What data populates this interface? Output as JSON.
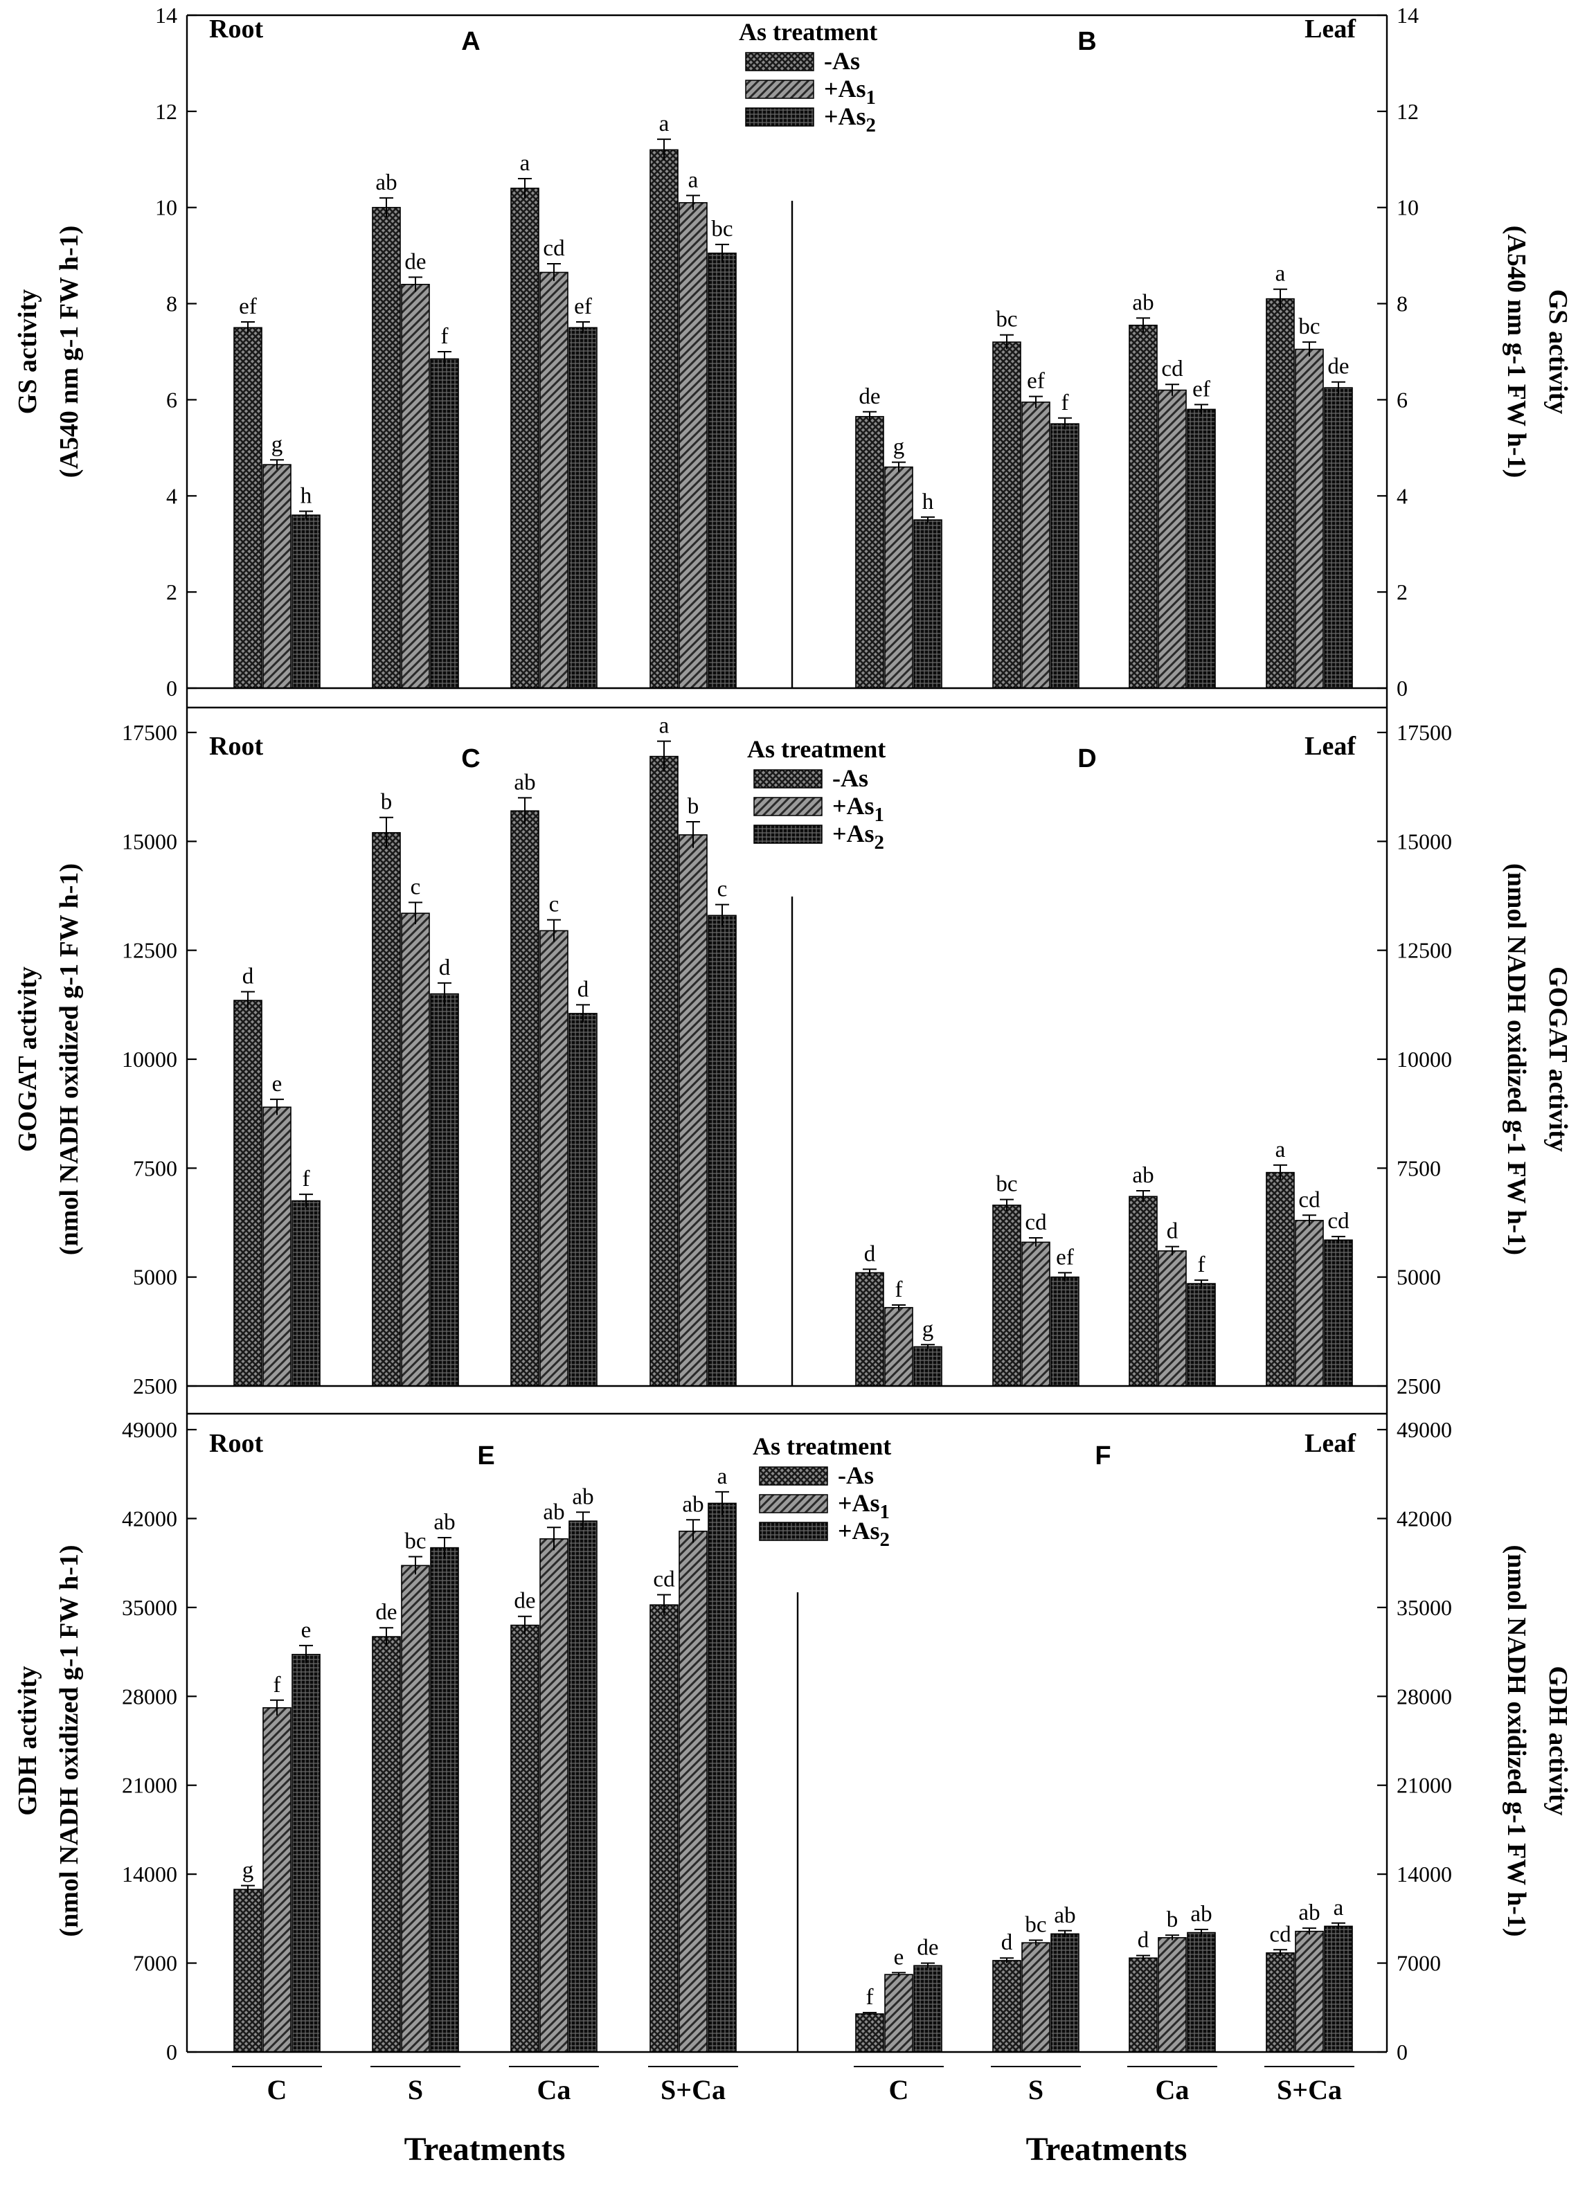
{
  "figure": {
    "x_title": "Treatments",
    "legend_title": "As treatment",
    "series_names": [
      "-As",
      "+As1",
      "+As2"
    ],
    "patterns": [
      "crosshatch",
      "diagonal",
      "grid"
    ],
    "colors": {
      "bar_dark": "#2a2a2a",
      "bar_grey": "#8c8c8c",
      "bar_black": "#101010",
      "axis": "#000000"
    }
  },
  "chart_data": [
    {
      "type": "bar",
      "panel": "A",
      "tissue": "Root",
      "side": "left",
      "ylabel": "GS activity",
      "yunit": "(A540 nm g-1 FW h-1)",
      "ylim": [
        0,
        14
      ],
      "yticks": [
        0,
        2,
        4,
        6,
        8,
        10,
        12,
        14
      ],
      "categories": [
        "C",
        "S",
        "Ca",
        "S+Ca"
      ],
      "series": [
        {
          "name": "-As",
          "values": [
            7.5,
            10.0,
            10.4,
            11.2
          ],
          "errors": [
            0.12,
            0.2,
            0.2,
            0.22
          ],
          "letters": [
            "ef",
            "ab",
            "a",
            "a"
          ]
        },
        {
          "name": "+As1",
          "values": [
            4.65,
            8.4,
            8.65,
            10.1
          ],
          "errors": [
            0.1,
            0.15,
            0.18,
            0.15
          ],
          "letters": [
            "g",
            "de",
            "cd",
            "a"
          ]
        },
        {
          "name": "+As2",
          "values": [
            3.6,
            6.85,
            7.5,
            9.05
          ],
          "errors": [
            0.08,
            0.15,
            0.12,
            0.18
          ],
          "letters": [
            "h",
            "f",
            "ef",
            "bc"
          ]
        }
      ],
      "legend": true
    },
    {
      "type": "bar",
      "panel": "B",
      "tissue": "Leaf",
      "side": "right",
      "ylabel": "GS activity",
      "yunit": "(A540 nm g-1 FW h-1)",
      "ylim": [
        0,
        14
      ],
      "yticks": [
        0,
        2,
        4,
        6,
        8,
        10,
        12,
        14
      ],
      "categories": [
        "C",
        "S",
        "Ca",
        "S+Ca"
      ],
      "series": [
        {
          "name": "-As",
          "values": [
            5.65,
            7.2,
            7.55,
            8.1
          ],
          "errors": [
            0.1,
            0.15,
            0.15,
            0.2
          ],
          "letters": [
            "de",
            "bc",
            "ab",
            "a"
          ]
        },
        {
          "name": "+As1",
          "values": [
            4.6,
            5.95,
            6.2,
            7.05
          ],
          "errors": [
            0.1,
            0.12,
            0.12,
            0.15
          ],
          "letters": [
            "g",
            "ef",
            "cd",
            "bc"
          ]
        },
        {
          "name": "+As2",
          "values": [
            3.5,
            5.5,
            5.8,
            6.25
          ],
          "errors": [
            0.06,
            0.12,
            0.1,
            0.12
          ],
          "letters": [
            "h",
            "f",
            "ef",
            "de"
          ]
        }
      ],
      "legend": false
    },
    {
      "type": "bar",
      "panel": "C",
      "tissue": "Root",
      "side": "left",
      "ylabel": "GOGAT activity",
      "yunit": "(nmol NADH oxidized g-1 FW h-1)",
      "ylim": [
        2500,
        17500
      ],
      "yticks": [
        2500,
        5000,
        7500,
        10000,
        12500,
        15000,
        17500
      ],
      "categories": [
        "C",
        "S",
        "Ca",
        "S+Ca"
      ],
      "series": [
        {
          "name": "-As",
          "values": [
            11350,
            15200,
            15700,
            16950
          ],
          "errors": [
            200,
            350,
            300,
            350
          ],
          "letters": [
            "d",
            "b",
            "ab",
            "a"
          ]
        },
        {
          "name": "+As1",
          "values": [
            8900,
            13350,
            12950,
            15150
          ],
          "errors": [
            180,
            250,
            250,
            300
          ],
          "letters": [
            "e",
            "c",
            "c",
            "b"
          ]
        },
        {
          "name": "+As2",
          "values": [
            6750,
            11500,
            11050,
            13300
          ],
          "errors": [
            150,
            250,
            200,
            250
          ],
          "letters": [
            "f",
            "d",
            "d",
            "c"
          ]
        }
      ],
      "legend": true
    },
    {
      "type": "bar",
      "panel": "D",
      "tissue": "Leaf",
      "side": "right",
      "ylabel": "GOGAT activity",
      "yunit": "(nmol NADH oxidized g-1 FW h-1)",
      "ylim": [
        2500,
        17500
      ],
      "yticks": [
        2500,
        5000,
        7500,
        10000,
        12500,
        15000,
        17500
      ],
      "categories": [
        "C",
        "S",
        "Ca",
        "S+Ca"
      ],
      "series": [
        {
          "name": "-As",
          "values": [
            5100,
            6650,
            6850,
            7400
          ],
          "errors": [
            80,
            130,
            130,
            170
          ],
          "letters": [
            "d",
            "bc",
            "ab",
            "a"
          ]
        },
        {
          "name": "+As1",
          "values": [
            4300,
            5800,
            5600,
            6300
          ],
          "errors": [
            60,
            100,
            100,
            120
          ],
          "letters": [
            "f",
            "cd",
            "d",
            "cd"
          ]
        },
        {
          "name": "+As2",
          "values": [
            3400,
            5000,
            4850,
            5850
          ],
          "errors": [
            50,
            100,
            80,
            80
          ],
          "letters": [
            "g",
            "ef",
            "f",
            "cd"
          ]
        }
      ],
      "legend": false
    },
    {
      "type": "bar",
      "panel": "E",
      "tissue": "Root",
      "side": "left",
      "ylabel": "GDH activity",
      "yunit": "(nmol NADH oxidized g-1 FW h-1)",
      "ylim": [
        0,
        49000
      ],
      "yticks": [
        0,
        7000,
        14000,
        21000,
        28000,
        35000,
        42000,
        49000
      ],
      "categories": [
        "C",
        "S",
        "Ca",
        "S+Ca"
      ],
      "series": [
        {
          "name": "-As",
          "values": [
            12800,
            32700,
            33600,
            35200
          ],
          "errors": [
            300,
            700,
            700,
            800
          ],
          "letters": [
            "g",
            "de",
            "de",
            "cd"
          ]
        },
        {
          "name": "+As1",
          "values": [
            27100,
            38300,
            40400,
            41000
          ],
          "errors": [
            600,
            700,
            900,
            900
          ],
          "letters": [
            "f",
            "bc",
            "ab",
            "ab"
          ]
        },
        {
          "name": "+As2",
          "values": [
            31300,
            39700,
            41800,
            43200
          ],
          "errors": [
            700,
            800,
            700,
            900
          ],
          "letters": [
            "e",
            "ab",
            "ab",
            "a"
          ]
        }
      ],
      "legend": true
    },
    {
      "type": "bar",
      "panel": "F",
      "tissue": "Leaf",
      "side": "right",
      "ylabel": "GDH activity",
      "yunit": "(nmol NADH oxidized g-1 FW h-1)",
      "ylim": [
        0,
        49000
      ],
      "yticks": [
        0,
        7000,
        14000,
        21000,
        28000,
        35000,
        42000,
        49000
      ],
      "categories": [
        "C",
        "S",
        "Ca",
        "S+Ca"
      ],
      "series": [
        {
          "name": "-As",
          "values": [
            3000,
            7200,
            7400,
            7800
          ],
          "errors": [
            100,
            200,
            200,
            250
          ],
          "letters": [
            "f",
            "d",
            "d",
            "cd"
          ]
        },
        {
          "name": "+As1",
          "values": [
            6100,
            8600,
            9000,
            9500
          ],
          "errors": [
            150,
            200,
            200,
            250
          ],
          "letters": [
            "e",
            "bc",
            "b",
            "ab"
          ]
        },
        {
          "name": "+As2",
          "values": [
            6800,
            9300,
            9400,
            9900
          ],
          "errors": [
            200,
            250,
            250,
            250
          ],
          "letters": [
            "de",
            "ab",
            "ab",
            "a"
          ]
        }
      ],
      "legend": false
    }
  ]
}
